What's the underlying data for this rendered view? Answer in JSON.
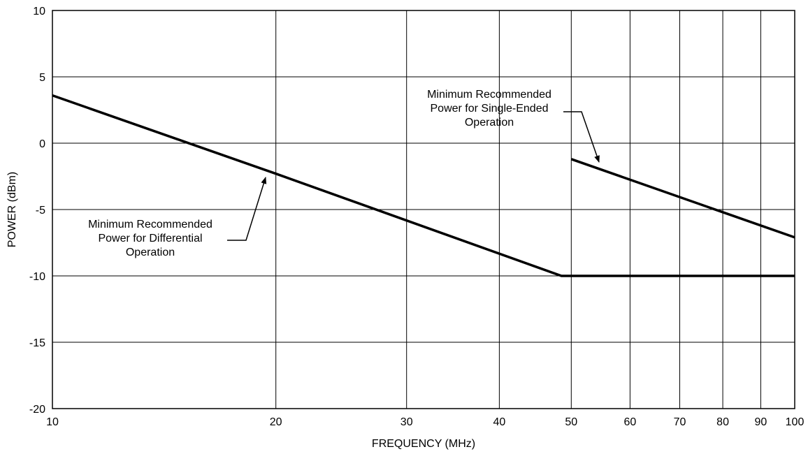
{
  "chart_data": {
    "type": "line",
    "title": "",
    "xlabel": "FREQUENCY (MHz)",
    "ylabel": "POWER (dBm)",
    "x_scale": "log",
    "xlim": [
      10,
      100
    ],
    "ylim": [
      -20,
      10
    ],
    "x_ticks": [
      10,
      20,
      30,
      40,
      50,
      60,
      70,
      80,
      90,
      100
    ],
    "y_ticks": [
      10,
      5,
      0,
      -5,
      -10,
      -15,
      -20
    ],
    "x_tick_labels": [
      "10",
      "20",
      "30",
      "40",
      "50",
      "60",
      "70",
      "80",
      "90",
      "100"
    ],
    "y_tick_labels": [
      "10",
      "5",
      "0",
      "-5",
      "-10",
      "-15",
      "-20"
    ],
    "grid": true,
    "series": [
      {
        "name": "Minimum Recommended Power for Differential Operation",
        "x": [
          10,
          20,
          48.5,
          100
        ],
        "y": [
          3.6,
          -2.3,
          -10,
          -10
        ],
        "color": "#000000"
      },
      {
        "name": "Minimum Recommended Power for Single-Ended Operation",
        "x": [
          50,
          80,
          100
        ],
        "y": [
          -1.2,
          -5.2,
          -7.1
        ],
        "color": "#000000"
      }
    ],
    "annotations": [
      {
        "lines": [
          "Minimum Recommended",
          "Power for Differential",
          "Operation"
        ],
        "x": 19.8,
        "y": -2.5
      },
      {
        "lines": [
          "Minimum Recommended",
          "Power for Single-Ended",
          "Operation"
        ],
        "x": 55,
        "y": -1.7
      }
    ]
  }
}
